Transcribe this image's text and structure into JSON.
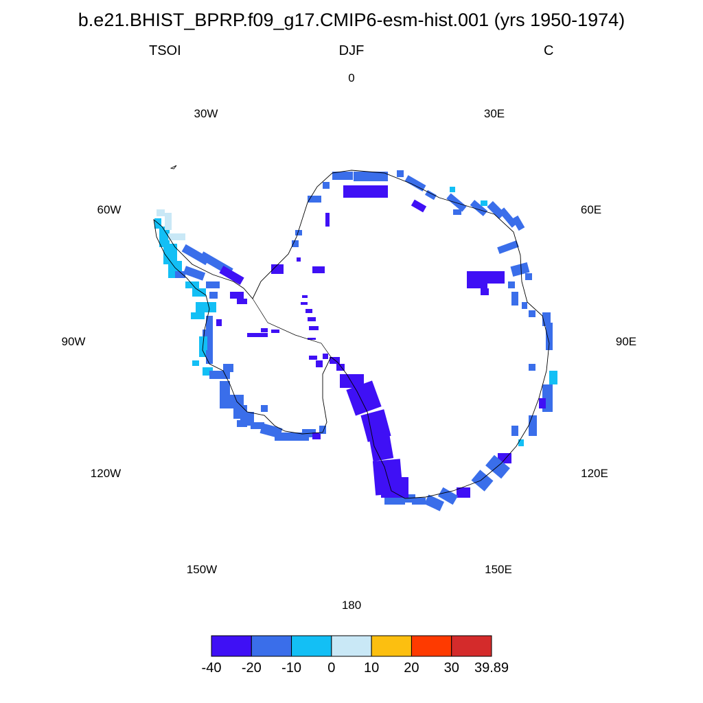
{
  "title": "b.e21.BHIST_BPRP.f09_g17.CMIP6-esm-hist.001 (yrs 1950-1974)",
  "left_string": "TSOI",
  "center_string": "DJF",
  "right_string": "C",
  "longitude_labels": {
    "lon_0": "0",
    "lon_30e": "30E",
    "lon_60e": "60E",
    "lon_90e": "90E",
    "lon_120e": "120E",
    "lon_150e": "150E",
    "lon_180": "180",
    "lon_150w": "150W",
    "lon_120w": "120W",
    "lon_90w": "90W",
    "lon_60w": "60W",
    "lon_30w": "30W"
  },
  "colorbar": {
    "colors": [
      "#3f10f5",
      "#3a6eea",
      "#13bff5",
      "#c9e8f6",
      "#fcbf10",
      "#fe3a00",
      "#d42b2b"
    ],
    "labels": [
      "-40",
      "-20",
      "-10",
      "0",
      "10",
      "20",
      "30",
      "39.89"
    ]
  },
  "chart_data": {
    "type": "heatmap",
    "variable": "TSOI",
    "season": "DJF",
    "units": "C",
    "projection": "south polar stereographic",
    "levels": [
      -40,
      -20,
      -10,
      0,
      10,
      20,
      30
    ],
    "max_value": 39.89,
    "field_note": "Values are present along the Antarctic coastal margin only; the interior is unfilled.",
    "dominant_bins": [
      {
        "range": "-40 to -20",
        "color": "#3f10f5",
        "where": "Ross Ice Shelf edge, Transantarctic Mountains, isolated interior patches"
      },
      {
        "range": "-20 to -10",
        "color": "#3a6eea",
        "where": "most of the East and West Antarctic coastline"
      },
      {
        "range": "-10 to 0",
        "color": "#13bff5",
        "where": "Antarctic Peninsula and scattered coastal cells"
      },
      {
        "range": "0 to 10",
        "color": "#c9e8f6",
        "where": "northern tip of the Antarctic Peninsula"
      }
    ]
  }
}
